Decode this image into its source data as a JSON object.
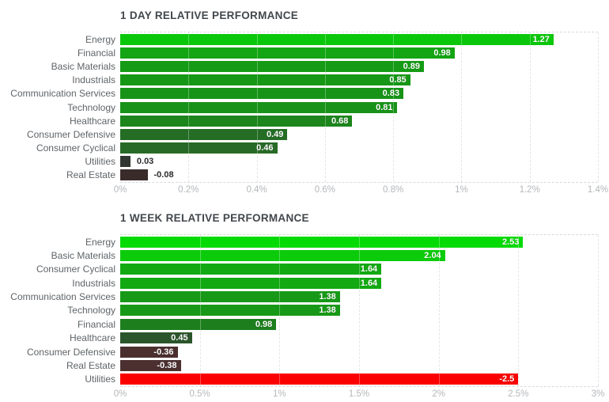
{
  "styles": {
    "background": "#ffffff",
    "title_color": "#42474c",
    "category_label_color": "#5f6468",
    "tick_label_color": "#b4b7ba",
    "value_inside_color": "#ffffff",
    "value_outside_color": "#2b2b2b",
    "gridline_color": "#d8dadb"
  },
  "chart_data": [
    {
      "type": "bar",
      "orientation": "horizontal",
      "title": "1 DAY RELATIVE PERFORMANCE",
      "xlabel": "",
      "ylabel": "",
      "unit": "%",
      "xlim": [
        0,
        1.4
      ],
      "xticks": [
        "0%",
        "0.2%",
        "0.4%",
        "0.6%",
        "0.8%",
        "1%",
        "1.2%",
        "1.4%"
      ],
      "grid": "dashed-vertical",
      "legend": "none",
      "bar_length_rule": "bar length equals absolute value of percent",
      "bars": [
        {
          "category": "Energy",
          "value": 1.27,
          "label": "1.27",
          "color": "#0bc70b",
          "label_placement": "inside"
        },
        {
          "category": "Financial",
          "value": 0.98,
          "label": "0.98",
          "color": "#13a513",
          "label_placement": "inside"
        },
        {
          "category": "Basic Materials",
          "value": 0.89,
          "label": "0.89",
          "color": "#159b15",
          "label_placement": "inside"
        },
        {
          "category": "Industrials",
          "value": 0.85,
          "label": "0.85",
          "color": "#169716",
          "label_placement": "inside"
        },
        {
          "category": "Communication Services",
          "value": 0.83,
          "label": "0.83",
          "color": "#179417",
          "label_placement": "inside"
        },
        {
          "category": "Technology",
          "value": 0.81,
          "label": "0.81",
          "color": "#189218",
          "label_placement": "inside"
        },
        {
          "category": "Healthcare",
          "value": 0.68,
          "label": "0.68",
          "color": "#1c851c",
          "label_placement": "inside"
        },
        {
          "category": "Consumer Defensive",
          "value": 0.49,
          "label": "0.49",
          "color": "#256d25",
          "label_placement": "inside"
        },
        {
          "category": "Consumer Cyclical",
          "value": 0.46,
          "label": "0.46",
          "color": "#276a27",
          "label_placement": "inside"
        },
        {
          "category": "Utilities",
          "value": 0.03,
          "label": "0.03",
          "color": "#303630",
          "label_placement": "outside"
        },
        {
          "category": "Real Estate",
          "value": -0.08,
          "label": "-0.08",
          "color": "#3a2b2b",
          "label_placement": "outside"
        }
      ]
    },
    {
      "type": "bar",
      "orientation": "horizontal",
      "title": "1 WEEK RELATIVE PERFORMANCE",
      "xlabel": "",
      "ylabel": "",
      "unit": "%",
      "xlim": [
        0,
        3
      ],
      "xticks": [
        "0%",
        "0.5%",
        "1%",
        "1.5%",
        "2%",
        "2.5%",
        "3%"
      ],
      "grid": "dashed-vertical",
      "legend": "none",
      "bar_length_rule": "bar length equals absolute value of percent",
      "bars": [
        {
          "category": "Energy",
          "value": 2.53,
          "label": "2.53",
          "color": "#04da04",
          "label_placement": "inside"
        },
        {
          "category": "Basic Materials",
          "value": 2.04,
          "label": "2.04",
          "color": "#0bcb0b",
          "label_placement": "inside"
        },
        {
          "category": "Consumer Cyclical",
          "value": 1.64,
          "label": "1.64",
          "color": "#12a912",
          "label_placement": "inside"
        },
        {
          "category": "Industrials",
          "value": 1.64,
          "label": "1.64",
          "color": "#12a912",
          "label_placement": "inside"
        },
        {
          "category": "Communication Services",
          "value": 1.38,
          "label": "1.38",
          "color": "#179917",
          "label_placement": "inside"
        },
        {
          "category": "Technology",
          "value": 1.38,
          "label": "1.38",
          "color": "#179917",
          "label_placement": "inside"
        },
        {
          "category": "Financial",
          "value": 0.98,
          "label": "0.98",
          "color": "#1d7e1d",
          "label_placement": "inside"
        },
        {
          "category": "Healthcare",
          "value": 0.45,
          "label": "0.45",
          "color": "#2b552b",
          "label_placement": "inside"
        },
        {
          "category": "Consumer Defensive",
          "value": -0.36,
          "label": "-0.36",
          "color": "#4b2f2f",
          "label_placement": "inside"
        },
        {
          "category": "Real Estate",
          "value": -0.38,
          "label": "-0.38",
          "color": "#4c3030",
          "label_placement": "inside"
        },
        {
          "category": "Utilities",
          "value": -2.5,
          "label": "-2.5",
          "color": "#fb0000",
          "label_placement": "inside"
        }
      ]
    }
  ]
}
